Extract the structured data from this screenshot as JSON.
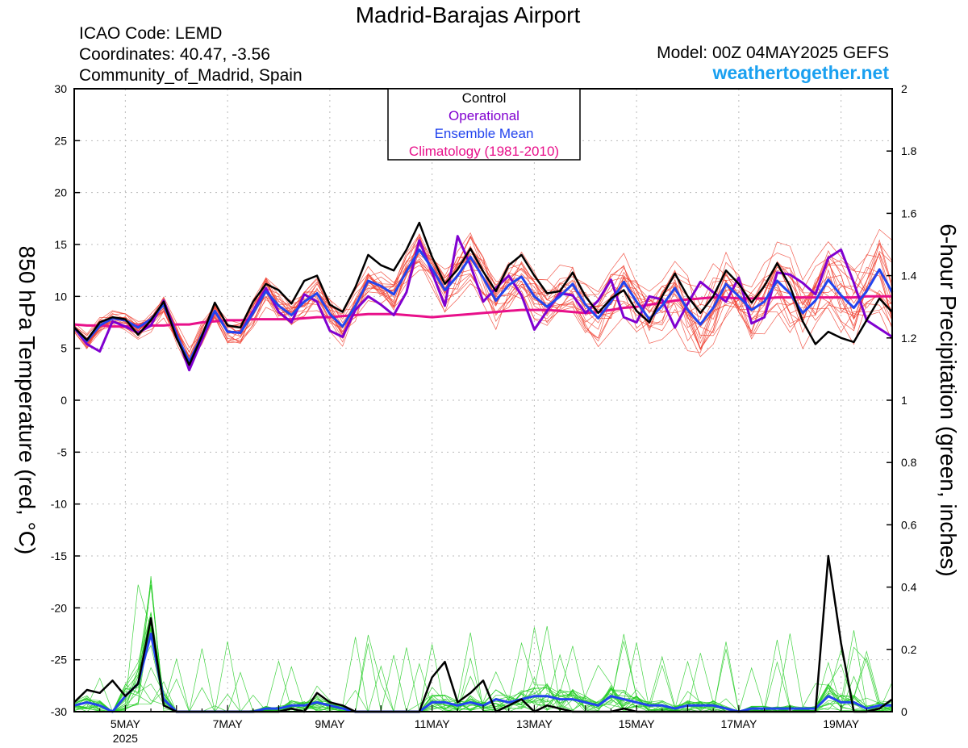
{
  "header": {
    "title": "Madrid-Barajas Airport",
    "icao": "ICAO Code: LEMD",
    "coordinates": "Coordinates: 40.47, -3.56",
    "region": "Community_of_Madrid, Spain",
    "model": "Model: 00Z 04MAY2025 GEFS",
    "site": "weathertogether.net"
  },
  "colors": {
    "control": "#000000",
    "operational": "#8000d0",
    "ensemble_mean": "#2244ee",
    "climatology": "#e8108a",
    "temp_members": "#f04030",
    "precip_members": "#22cc22",
    "site": "#1aa0f0"
  },
  "chart_data": {
    "type": "line",
    "legend": {
      "placement": "top-center",
      "items": [
        {
          "label": "Control",
          "color": "#000000"
        },
        {
          "label": "Operational",
          "color": "#8000d0"
        },
        {
          "label": "Ensemble Mean",
          "color": "#2244ee"
        },
        {
          "label": "Climatology (1981-2010)",
          "color": "#e8108a"
        }
      ]
    },
    "ylabel_left": "850 hPa Temperature (red, °C)",
    "ylabel_right": "6-hour Precipitation (green, inches)",
    "ylim_left": [
      -30,
      30
    ],
    "ylim_right": [
      0,
      2
    ],
    "yticks_left": [
      -30,
      -25,
      -20,
      -15,
      -10,
      -5,
      0,
      5,
      10,
      15,
      20,
      25,
      30
    ],
    "yticks_right": [
      "0",
      "0.2",
      "0.4",
      "0.6",
      "0.8",
      "1",
      "1.2",
      "1.4",
      "1.6",
      "1.8",
      "2"
    ],
    "xlim_hours": [
      0,
      384
    ],
    "xticks": [
      {
        "hour": 24,
        "label": "5MAY",
        "sub": "2025"
      },
      {
        "hour": 72,
        "label": "7MAY",
        "sub": ""
      },
      {
        "hour": 120,
        "label": "9MAY",
        "sub": ""
      },
      {
        "hour": 168,
        "label": "11MAY",
        "sub": ""
      },
      {
        "hour": 216,
        "label": "13MAY",
        "sub": ""
      },
      {
        "hour": 264,
        "label": "15MAY",
        "sub": ""
      },
      {
        "hour": 312,
        "label": "17MAY",
        "sub": ""
      },
      {
        "hour": 360,
        "label": "19MAY",
        "sub": ""
      }
    ],
    "grid": true,
    "time_step_hours": 6,
    "series": [
      {
        "name": "Control",
        "axis": "temperature",
        "values": [
          7.0,
          5.8,
          7.5,
          8.0,
          7.8,
          6.3,
          7.7,
          9.5,
          6.0,
          3.4,
          6.2,
          9.4,
          7.2,
          7.0,
          9.5,
          11.2,
          10.6,
          9.3,
          11.5,
          12.0,
          9.2,
          8.5,
          10.9,
          14.0,
          13.0,
          12.5,
          14.5,
          17.1,
          13.8,
          11.2,
          12.6,
          14.6,
          12.4,
          10.5,
          13.0,
          14.0,
          12.0,
          10.3,
          10.5,
          12.3,
          10.0,
          8.4,
          9.8,
          10.6,
          8.6,
          7.5,
          10.0,
          12.2,
          10.0,
          8.4,
          10.0,
          12.5,
          11.2,
          9.4,
          11.0,
          13.2,
          11.0,
          7.6,
          5.4,
          6.6,
          6.0,
          5.6,
          7.7,
          9.8,
          8.5
        ]
      },
      {
        "name": "Operational",
        "axis": "temperature",
        "values": [
          7.0,
          5.4,
          4.7,
          7.6,
          7.1,
          6.5,
          7.2,
          9.6,
          6.4,
          2.9,
          5.8,
          8.6,
          6.6,
          6.5,
          8.6,
          10.8,
          8.5,
          7.5,
          10.2,
          9.5,
          6.7,
          6.1,
          8.7,
          10.0,
          9.2,
          8.2,
          10.4,
          15.4,
          12.3,
          9.1,
          15.8,
          13.0,
          9.5,
          10.8,
          12.0,
          10.1,
          6.8,
          8.6,
          10.3,
          10.1,
          8.4,
          9.6,
          11.6,
          8.0,
          7.5,
          10.0,
          9.7,
          7.0,
          9.3,
          11.4,
          10.4,
          9.5,
          11.8,
          7.4,
          8.0,
          12.3,
          12.1,
          11.3,
          10.2,
          13.7,
          14.5,
          11.3,
          7.7,
          6.9,
          6.1
        ]
      },
      {
        "name": "Ensemble Mean",
        "axis": "temperature",
        "values": [
          7.0,
          5.7,
          7.2,
          7.9,
          7.7,
          7.0,
          7.8,
          9.2,
          6.3,
          3.7,
          6.3,
          8.6,
          6.6,
          6.5,
          8.4,
          10.5,
          9.1,
          8.2,
          9.5,
          10.3,
          8.3,
          7.1,
          9.1,
          11.5,
          11.0,
          10.2,
          12.4,
          14.5,
          12.7,
          10.6,
          12.0,
          13.8,
          11.8,
          9.6,
          11.1,
          11.9,
          10.0,
          9.0,
          10.0,
          11.2,
          9.2,
          7.9,
          9.5,
          11.4,
          9.5,
          7.8,
          9.1,
          10.8,
          8.7,
          7.3,
          8.9,
          11.2,
          10.0,
          8.7,
          9.5,
          11.5,
          10.3,
          8.4,
          9.6,
          11.6,
          10.1,
          8.9,
          10.5,
          12.6,
          10.4
        ]
      },
      {
        "name": "Climatology (1981-2010)",
        "axis": "temperature",
        "values": [
          7.3,
          7.2,
          7.2,
          7.1,
          7.1,
          7.2,
          7.2,
          7.2,
          7.3,
          7.3,
          7.5,
          7.6,
          7.7,
          7.7,
          7.8,
          7.8,
          7.8,
          7.8,
          7.9,
          8.0,
          8.0,
          8.1,
          8.2,
          8.3,
          8.3,
          8.3,
          8.2,
          8.1,
          8.0,
          8.1,
          8.2,
          8.3,
          8.4,
          8.5,
          8.6,
          8.7,
          8.7,
          8.7,
          8.6,
          8.5,
          8.4,
          8.5,
          8.7,
          8.9,
          9.0,
          9.2,
          9.4,
          9.6,
          9.7,
          9.8,
          9.9,
          9.9,
          9.8,
          9.8,
          9.8,
          9.9,
          9.9,
          9.9,
          9.9,
          9.9,
          9.9,
          9.9,
          10.0,
          10.0,
          10.0
        ]
      },
      {
        "name": "Control",
        "axis": "precipitation",
        "values": [
          0.03,
          0.07,
          0.06,
          0.1,
          0.05,
          0.09,
          0.3,
          0.02,
          0.0,
          0.0,
          0.0,
          0.0,
          0.0,
          0.0,
          0.0,
          0.0,
          0.0,
          0.01,
          0.0,
          0.06,
          0.03,
          0.02,
          0.0,
          0.0,
          0.0,
          0.0,
          0.0,
          0.0,
          0.11,
          0.16,
          0.03,
          0.06,
          0.1,
          0.0,
          0.02,
          0.04,
          0.0,
          0.02,
          0.01,
          0.0,
          0.0,
          0.0,
          0.0,
          0.01,
          0.0,
          0.0,
          0.0,
          0.0,
          0.0,
          0.0,
          0.0,
          0.0,
          0.0,
          0.0,
          0.0,
          0.0,
          0.0,
          0.0,
          0.0,
          0.5,
          0.22,
          0.0,
          0.0,
          0.01,
          0.04
        ]
      },
      {
        "name": "Ensemble Mean",
        "axis": "precipitation",
        "values": [
          0.02,
          0.03,
          0.02,
          0.0,
          0.05,
          0.09,
          0.25,
          0.04,
          0.0,
          0.0,
          0.0,
          0.0,
          0.0,
          0.0,
          0.0,
          0.01,
          0.01,
          0.02,
          0.02,
          0.03,
          0.02,
          0.01,
          0.0,
          0.0,
          0.0,
          0.0,
          0.0,
          0.0,
          0.03,
          0.03,
          0.02,
          0.03,
          0.02,
          0.04,
          0.03,
          0.04,
          0.05,
          0.05,
          0.04,
          0.04,
          0.03,
          0.02,
          0.05,
          0.04,
          0.03,
          0.02,
          0.02,
          0.01,
          0.02,
          0.02,
          0.02,
          0.01,
          0.0,
          0.01,
          0.01,
          0.01,
          0.01,
          0.01,
          0.01,
          0.05,
          0.03,
          0.03,
          0.01,
          0.02,
          0.02
        ]
      }
    ]
  }
}
